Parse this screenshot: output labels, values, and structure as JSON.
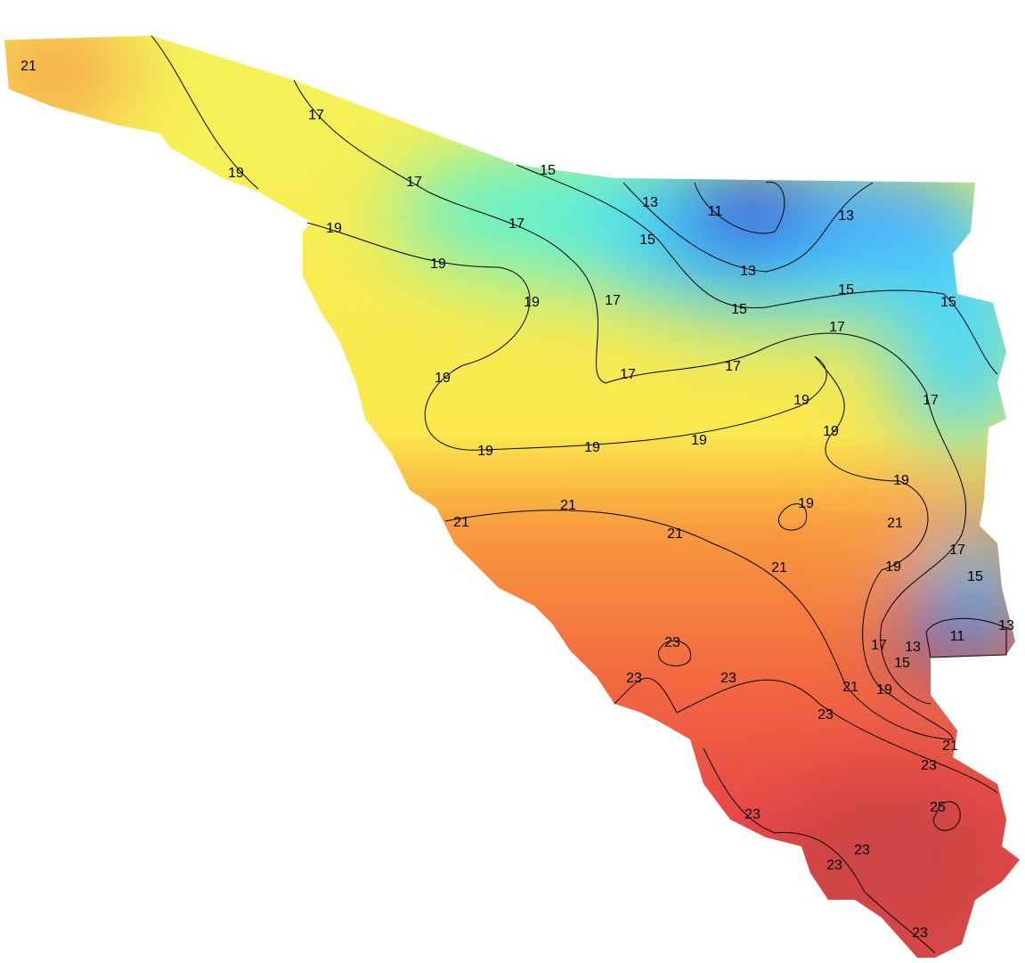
{
  "contour_labels": [
    21,
    19,
    17,
    17,
    17,
    15,
    13,
    11,
    13,
    15,
    13,
    15,
    15,
    15,
    19,
    19,
    19,
    17,
    17,
    17,
    17,
    19,
    19,
    17,
    19,
    19,
    19,
    19,
    19,
    19,
    21,
    21,
    21,
    21,
    21,
    19,
    17,
    15,
    23,
    11,
    13,
    13,
    17,
    15,
    23,
    23,
    21,
    19,
    23,
    21,
    23,
    25,
    23,
    23,
    23,
    23
  ]
}
